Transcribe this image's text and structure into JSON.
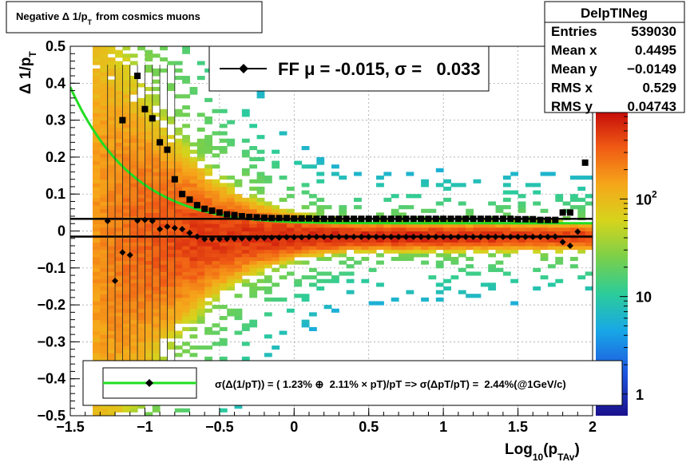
{
  "title": "Negative Δ 1/p_T from cosmics muons",
  "title_main": "Negative Δ 1/p",
  "title_sub": "T",
  "title_rest": "from cosmics muons",
  "stats": {
    "name": "DelpTINeg",
    "rows": [
      {
        "label": "Entries",
        "value": "539030"
      },
      {
        "label": "Mean x",
        "value": "0.4495"
      },
      {
        "label": "Mean y",
        "value": "−0.0149"
      },
      {
        "label": "RMS x",
        "value": "0.529"
      },
      {
        "label": "RMS y",
        "value": "0.04743"
      }
    ]
  },
  "legend_top": {
    "text": "FF μ = -0.015, σ =   0.033"
  },
  "legend_bottom": {
    "text": "σ(Δ(1/pT)) = ( 1.23% ⊕  2.11% × pT)/pT => σ(ΔpT/pT) =  2.44%(@1GeV/c)"
  },
  "colorbar": {
    "ticks": [
      {
        "label": "1",
        "value": 1
      },
      {
        "label": "10",
        "value": 10
      },
      {
        "label": "10",
        "sup": "2",
        "value": 100
      }
    ],
    "range": [
      0.6,
      800
    ],
    "scale": "log"
  },
  "chart_data": {
    "type": "heatmap",
    "xlabel_main": "Log",
    "xlabel_sub1": "10",
    "xlabel_mid": "(p",
    "xlabel_sub2": "TAv",
    "xlabel_end": ")",
    "ylabel_main": "Δ 1/p",
    "ylabel_sub": "T",
    "xlim": [
      -1.5,
      2.0
    ],
    "ylim": [
      -0.5,
      0.5
    ],
    "xticks": [
      {
        "v": -1.5,
        "t": "−1.5"
      },
      {
        "v": -1,
        "t": "−1"
      },
      {
        "v": -0.5,
        "t": "−0.5"
      },
      {
        "v": 0,
        "t": "0"
      },
      {
        "v": 0.5,
        "t": "0.5"
      },
      {
        "v": 1,
        "t": "1"
      },
      {
        "v": 1.5,
        "t": "1.5"
      },
      {
        "v": 2,
        "t": "2"
      }
    ],
    "yticks": [
      {
        "v": -0.5,
        "t": "−0.5"
      },
      {
        "v": -0.4,
        "t": "−0.4"
      },
      {
        "v": -0.3,
        "t": "−0.3"
      },
      {
        "v": -0.2,
        "t": "−0.2"
      },
      {
        "v": -0.1,
        "t": "−0.1"
      },
      {
        "v": 0,
        "t": "0"
      },
      {
        "v": 0.1,
        "t": "0.1"
      },
      {
        "v": 0.2,
        "t": "0.2"
      },
      {
        "v": 0.3,
        "t": "0.3"
      },
      {
        "v": 0.4,
        "t": "0.4"
      },
      {
        "v": 0.5,
        "t": "0.5"
      }
    ],
    "grid": true,
    "mean_points": [
      [
        -1.25,
        0.027
      ],
      [
        -1.2,
        -0.135
      ],
      [
        -1.15,
        -0.058
      ],
      [
        -1.1,
        -0.065
      ],
      [
        -1.05,
        0.028
      ],
      [
        -1.0,
        0.03
      ],
      [
        -0.95,
        0.027
      ],
      [
        -0.9,
        0.005
      ],
      [
        -0.85,
        0.012
      ],
      [
        -0.8,
        0.008
      ],
      [
        -0.75,
        0.005
      ],
      [
        -0.7,
        -0.005
      ],
      [
        -0.65,
        -0.015
      ],
      [
        -0.6,
        -0.022
      ],
      [
        -0.55,
        -0.022
      ],
      [
        -0.5,
        -0.022
      ],
      [
        -0.45,
        -0.021
      ],
      [
        -0.4,
        -0.021
      ],
      [
        -0.35,
        -0.02
      ],
      [
        -0.3,
        -0.02
      ],
      [
        -0.25,
        -0.019
      ],
      [
        -0.2,
        -0.019
      ],
      [
        -0.15,
        -0.018
      ],
      [
        -0.1,
        -0.018
      ],
      [
        -0.05,
        -0.017
      ],
      [
        0.0,
        -0.017
      ],
      [
        0.05,
        -0.017
      ],
      [
        0.1,
        -0.016
      ],
      [
        0.15,
        -0.016
      ],
      [
        0.2,
        -0.016
      ],
      [
        0.25,
        -0.016
      ],
      [
        0.3,
        -0.016
      ],
      [
        0.35,
        -0.016
      ],
      [
        0.4,
        -0.016
      ],
      [
        0.45,
        -0.016
      ],
      [
        0.5,
        -0.016
      ],
      [
        0.55,
        -0.016
      ],
      [
        0.6,
        -0.016
      ],
      [
        0.65,
        -0.016
      ],
      [
        0.7,
        -0.016
      ],
      [
        0.75,
        -0.016
      ],
      [
        0.8,
        -0.016
      ],
      [
        0.85,
        -0.016
      ],
      [
        0.9,
        -0.016
      ],
      [
        0.95,
        -0.016
      ],
      [
        1.0,
        -0.016
      ],
      [
        1.05,
        -0.016
      ],
      [
        1.1,
        -0.016
      ],
      [
        1.15,
        -0.016
      ],
      [
        1.2,
        -0.016
      ],
      [
        1.25,
        -0.016
      ],
      [
        1.3,
        -0.016
      ],
      [
        1.35,
        -0.016
      ],
      [
        1.4,
        -0.016
      ],
      [
        1.45,
        -0.016
      ],
      [
        1.5,
        -0.016
      ],
      [
        1.55,
        -0.016
      ],
      [
        1.6,
        -0.016
      ],
      [
        1.65,
        -0.016
      ],
      [
        1.7,
        -0.016
      ],
      [
        1.75,
        -0.015
      ],
      [
        1.8,
        -0.03
      ],
      [
        1.85,
        -0.04
      ],
      [
        1.9,
        -0.002
      ]
    ],
    "rms_points": [
      [
        -1.15,
        0.3
      ],
      [
        -1.05,
        0.42
      ],
      [
        -1.0,
        0.33
      ],
      [
        -0.95,
        0.305
      ],
      [
        -0.9,
        0.24
      ],
      [
        -0.85,
        0.22
      ],
      [
        -0.8,
        0.14
      ],
      [
        -0.75,
        0.1
      ],
      [
        -0.7,
        0.085
      ],
      [
        -0.65,
        0.07
      ],
      [
        -0.6,
        0.06
      ],
      [
        -0.55,
        0.055
      ],
      [
        -0.5,
        0.05
      ],
      [
        -0.45,
        0.045
      ],
      [
        -0.4,
        0.043
      ],
      [
        -0.35,
        0.04
      ],
      [
        -0.3,
        0.038
      ],
      [
        -0.25,
        0.037
      ],
      [
        -0.2,
        0.036
      ],
      [
        -0.15,
        0.035
      ],
      [
        -0.1,
        0.035
      ],
      [
        -0.05,
        0.035
      ],
      [
        0.0,
        0.034
      ],
      [
        0.05,
        0.034
      ],
      [
        0.1,
        0.034
      ],
      [
        0.15,
        0.033
      ],
      [
        0.2,
        0.033
      ],
      [
        0.25,
        0.033
      ],
      [
        0.3,
        0.033
      ],
      [
        0.35,
        0.033
      ],
      [
        0.4,
        0.033
      ],
      [
        0.45,
        0.033
      ],
      [
        0.5,
        0.033
      ],
      [
        0.55,
        0.033
      ],
      [
        0.6,
        0.033
      ],
      [
        0.65,
        0.033
      ],
      [
        0.7,
        0.033
      ],
      [
        0.75,
        0.033
      ],
      [
        0.8,
        0.033
      ],
      [
        0.85,
        0.033
      ],
      [
        0.9,
        0.033
      ],
      [
        0.95,
        0.033
      ],
      [
        1.0,
        0.033
      ],
      [
        1.05,
        0.033
      ],
      [
        1.1,
        0.033
      ],
      [
        1.15,
        0.033
      ],
      [
        1.2,
        0.033
      ],
      [
        1.25,
        0.033
      ],
      [
        1.3,
        0.033
      ],
      [
        1.35,
        0.033
      ],
      [
        1.4,
        0.033
      ],
      [
        1.45,
        0.033
      ],
      [
        1.5,
        0.032
      ],
      [
        1.55,
        0.032
      ],
      [
        1.6,
        0.032
      ],
      [
        1.65,
        0.03
      ],
      [
        1.7,
        0.03
      ],
      [
        1.75,
        0.03
      ],
      [
        1.8,
        0.05
      ],
      [
        1.85,
        0.05
      ],
      [
        1.95,
        0.185
      ]
    ],
    "fit_curve": {
      "a": 0.0123,
      "b": 0.0211
    },
    "mean_line": -0.015,
    "sigma_line": 0.033
  }
}
